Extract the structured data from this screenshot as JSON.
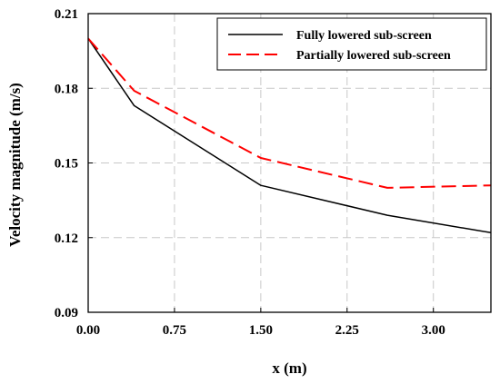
{
  "chart_data": {
    "type": "line",
    "xlabel": "x (m)",
    "ylabel": "Velocity magnitude (m/s)",
    "xlim": [
      0,
      3.5
    ],
    "ylim": [
      0.09,
      0.21
    ],
    "x_ticks": [
      0,
      0.75,
      1.5,
      2.25,
      3.0
    ],
    "x_tick_labels": [
      "0.00",
      "0.75",
      "1.50",
      "2.25",
      "3.00"
    ],
    "y_ticks": [
      0.09,
      0.12,
      0.15,
      0.18,
      0.21
    ],
    "y_tick_labels": [
      "0.09",
      "0.12",
      "0.15",
      "0.18",
      "0.21"
    ],
    "grid": true,
    "legend_position": "top-right",
    "series": [
      {
        "name": "Fully lowered sub-screen",
        "color": "#000000",
        "dash": "solid",
        "x": [
          0,
          0.4,
          1.5,
          2.6,
          3.5
        ],
        "y": [
          0.2,
          0.173,
          0.141,
          0.129,
          0.122
        ]
      },
      {
        "name": "Partially lowered sub-screen",
        "color": "#ff0000",
        "dash": "dashed",
        "x": [
          0,
          0.4,
          1.5,
          2.6,
          3.5
        ],
        "y": [
          0.2,
          0.179,
          0.152,
          0.14,
          0.141
        ]
      }
    ]
  }
}
